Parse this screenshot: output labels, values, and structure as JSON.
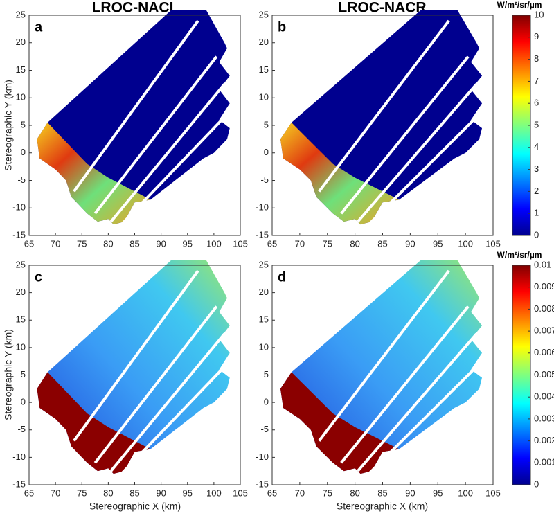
{
  "column_titles": [
    "LROC-NACL",
    "LROC-NACR"
  ],
  "y_axis_label": "Stereographic Y (km)",
  "x_axis_label": "Stereographic X (km)",
  "chart_data": [
    {
      "type": "image",
      "panel_label": "a",
      "xlim": [
        65,
        105
      ],
      "ylim": [
        -15,
        25
      ],
      "xticks": [
        65,
        70,
        75,
        80,
        85,
        90,
        95,
        100,
        105
      ],
      "yticks": [
        -15,
        -10,
        -5,
        0,
        5,
        10,
        15,
        20,
        25
      ]
    },
    {
      "type": "image",
      "panel_label": "b",
      "xlim": [
        65,
        105
      ],
      "ylim": [
        -15,
        25
      ],
      "xticks": [
        65,
        70,
        75,
        80,
        85,
        90,
        95,
        100,
        105
      ],
      "yticks": [
        -15,
        -10,
        -5,
        0,
        5,
        10,
        15,
        20,
        25
      ]
    },
    {
      "type": "image",
      "panel_label": "c",
      "xlim": [
        65,
        105
      ],
      "ylim": [
        -15,
        25
      ],
      "xticks": [
        65,
        70,
        75,
        80,
        85,
        90,
        95,
        100,
        105
      ],
      "yticks": [
        -15,
        -10,
        -5,
        0,
        5,
        10,
        15,
        20,
        25
      ]
    },
    {
      "type": "image",
      "panel_label": "d",
      "xlim": [
        65,
        105
      ],
      "ylim": [
        -15,
        25
      ],
      "xticks": [
        65,
        70,
        75,
        80,
        85,
        90,
        95,
        100,
        105
      ],
      "yticks": [
        -15,
        -10,
        -5,
        0,
        5,
        10,
        15,
        20,
        25
      ]
    }
  ],
  "colorbars": [
    {
      "unit": "W/m²/sr/µm",
      "lim": [
        0,
        10
      ],
      "ticks": [
        0,
        1,
        2,
        3,
        4,
        5,
        6,
        7,
        8,
        9,
        10
      ]
    },
    {
      "unit": "W/m²/sr/µm",
      "lim": [
        0,
        0.01
      ],
      "ticks": [
        0,
        0.001,
        0.002,
        0.003,
        0.004,
        0.005,
        0.006,
        0.007,
        0.008,
        0.009,
        0.01
      ]
    }
  ]
}
